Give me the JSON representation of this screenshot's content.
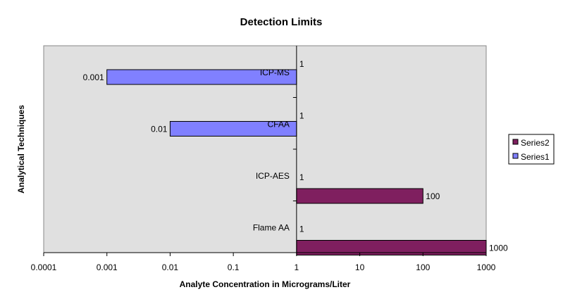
{
  "chart_data": {
    "type": "bar",
    "orientation": "horizontal",
    "title": "Detection Limits",
    "xlabel": "Analyte Concentration in Micrograms/Liter",
    "ylabel": "Analytical Techniques",
    "x_scale": "log",
    "xlim": [
      0.0001,
      1000
    ],
    "x_ticks": [
      "0.0001",
      "0.001",
      "0.01",
      "0.1",
      "1",
      "10",
      "100",
      "1000"
    ],
    "categories": [
      "ICP-MS",
      "CFAA",
      "ICP-AES",
      "Flame AA"
    ],
    "series": [
      {
        "name": "Series1",
        "values": [
          0.001,
          0.01,
          1,
          1
        ],
        "labels": [
          "0.001",
          "0.01",
          "1",
          "1"
        ]
      },
      {
        "name": "Series2",
        "values": [
          1,
          1,
          100,
          1000
        ],
        "labels": [
          "1",
          "1",
          "100",
          "1000"
        ]
      }
    ],
    "legend": {
      "position": "right",
      "order": [
        "Series2",
        "Series1"
      ]
    },
    "grid": false,
    "colors": {
      "Series1": "#8080ff",
      "Series2": "#7f1f5f",
      "plot_background": "#e0e0e0"
    }
  }
}
